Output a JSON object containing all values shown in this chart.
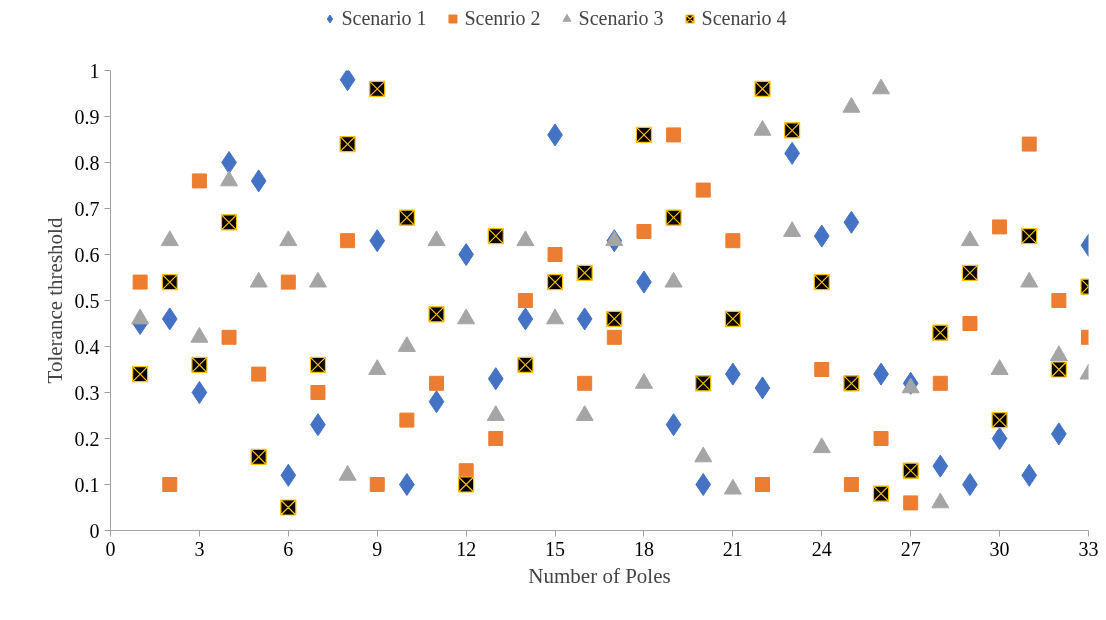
{
  "chart_data": {
    "type": "scatter",
    "xlabel": "Number of Poles",
    "ylabel": "Tolerance threshold",
    "x": [
      1,
      2,
      3,
      4,
      5,
      6,
      7,
      8,
      9,
      10,
      11,
      12,
      13,
      14,
      15,
      16,
      17,
      18,
      19,
      20,
      21,
      22,
      23,
      24,
      25,
      26,
      27,
      28,
      29,
      30,
      31,
      32,
      33
    ],
    "series": [
      {
        "name": "Scenario 1",
        "color": "#4472c4",
        "marker": "diamond",
        "values": [
          0.45,
          0.46,
          0.3,
          0.8,
          0.76,
          0.12,
          0.23,
          0.98,
          0.63,
          0.1,
          0.28,
          0.6,
          0.33,
          0.46,
          0.86,
          0.46,
          0.63,
          0.54,
          0.23,
          0.1,
          0.34,
          0.31,
          0.82,
          0.64,
          0.67,
          0.34,
          0.32,
          0.14,
          0.1,
          0.2,
          0.12,
          0.21,
          0.62
        ]
      },
      {
        "name": "Scenrio 2",
        "color": "#ed7d31",
        "marker": "square",
        "values": [
          0.54,
          0.1,
          0.76,
          0.42,
          0.34,
          0.54,
          0.3,
          0.63,
          0.1,
          0.24,
          0.32,
          0.13,
          0.2,
          0.5,
          0.6,
          0.32,
          0.42,
          0.65,
          0.86,
          0.74,
          0.63,
          0.1,
          null,
          0.35,
          0.1,
          0.2,
          0.06,
          0.32,
          0.45,
          0.66,
          0.84,
          0.5,
          0.42
        ]
      },
      {
        "name": "Scenario 3",
        "color": "#a5a5a5",
        "marker": "triangle",
        "values": [
          0.46,
          0.63,
          0.42,
          0.76,
          0.54,
          0.63,
          0.54,
          0.12,
          0.35,
          0.4,
          0.63,
          0.46,
          0.25,
          0.63,
          0.46,
          0.25,
          0.63,
          0.32,
          0.54,
          0.16,
          0.09,
          0.87,
          0.65,
          0.18,
          0.92,
          0.96,
          0.31,
          0.06,
          0.63,
          0.35,
          0.54,
          0.38,
          0.34
        ]
      },
      {
        "name": "Scenario 4",
        "color": "#000000",
        "marker": "cross",
        "values": [
          0.34,
          0.54,
          0.36,
          0.67,
          0.16,
          0.05,
          0.36,
          0.84,
          0.96,
          0.68,
          0.47,
          0.1,
          0.64,
          0.36,
          0.54,
          0.56,
          0.46,
          0.86,
          0.68,
          0.32,
          0.46,
          0.96,
          0.87,
          0.54,
          0.32,
          0.08,
          0.13,
          0.43,
          0.56,
          0.24,
          0.64,
          0.35,
          0.53
        ]
      }
    ],
    "xlim": [
      0,
      33
    ],
    "xticks": [
      0,
      3,
      6,
      9,
      12,
      15,
      18,
      21,
      24,
      27,
      30,
      33
    ],
    "ylim": [
      0,
      1
    ],
    "yticks": [
      0,
      0.1,
      0.2,
      0.3,
      0.4,
      0.5,
      0.6,
      0.7,
      0.8,
      0.9,
      1
    ],
    "grid": false,
    "legend": "top"
  }
}
